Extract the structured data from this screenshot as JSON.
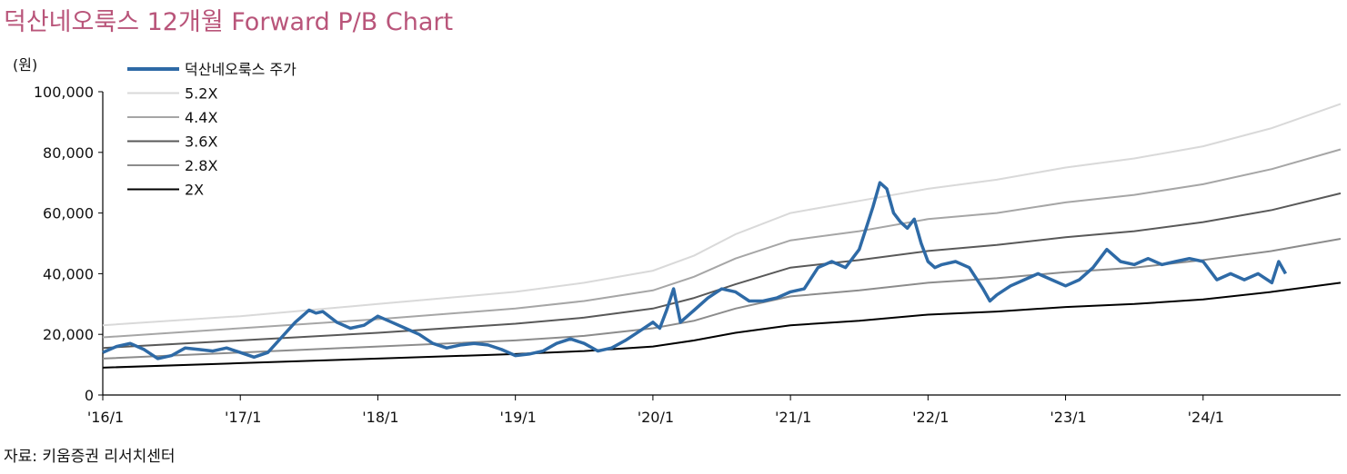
{
  "title": "덕산네오룩스  12개월  Forward P/B Chart",
  "source": "자료: 키움증권 리서치센터",
  "chart_data": {
    "type": "line",
    "title": "덕산네오룩스  12개월  Forward P/B Chart",
    "ylabel": "(원)",
    "ylim": [
      0,
      100000
    ],
    "yticks": [
      0,
      20000,
      40000,
      60000,
      80000,
      100000
    ],
    "ytick_labels": [
      "0",
      "20,000",
      "40,000",
      "60,000",
      "80,000",
      "100,000"
    ],
    "xlim": [
      2016.0,
      2025.0
    ],
    "xticks": [
      2016,
      2017,
      2018,
      2019,
      2020,
      2021,
      2022,
      2023,
      2024
    ],
    "xtick_labels": [
      "'16/1",
      "'17/1",
      "'18/1",
      "'19/1",
      "'20/1",
      "'21/1",
      "'22/1",
      "'23/1",
      "'24/1"
    ],
    "grid": false,
    "legend_position": "top-left",
    "series": [
      {
        "name": "덕산네오룩스  주가",
        "color": "#2e6aa6",
        "x": [
          2016.0,
          2016.1,
          2016.2,
          2016.3,
          2016.4,
          2016.5,
          2016.6,
          2016.7,
          2016.8,
          2016.9,
          2017.0,
          2017.1,
          2017.2,
          2017.3,
          2017.4,
          2017.45,
          2017.5,
          2017.55,
          2017.6,
          2017.7,
          2017.8,
          2017.9,
          2018.0,
          2018.1,
          2018.2,
          2018.3,
          2018.4,
          2018.5,
          2018.6,
          2018.7,
          2018.8,
          2018.9,
          2019.0,
          2019.1,
          2019.2,
          2019.3,
          2019.4,
          2019.5,
          2019.6,
          2019.7,
          2019.8,
          2019.9,
          2020.0,
          2020.05,
          2020.1,
          2020.15,
          2020.2,
          2020.3,
          2020.4,
          2020.5,
          2020.6,
          2020.7,
          2020.8,
          2020.9,
          2021.0,
          2021.1,
          2021.2,
          2021.3,
          2021.4,
          2021.45,
          2021.5,
          2021.55,
          2021.6,
          2021.65,
          2021.7,
          2021.75,
          2021.8,
          2021.85,
          2021.9,
          2021.95,
          2022.0,
          2022.05,
          2022.1,
          2022.2,
          2022.3,
          2022.4,
          2022.45,
          2022.5,
          2022.6,
          2022.7,
          2022.8,
          2022.9,
          2023.0,
          2023.1,
          2023.2,
          2023.3,
          2023.4,
          2023.5,
          2023.6,
          2023.7,
          2023.8,
          2023.9,
          2024.0,
          2024.1,
          2024.2,
          2024.3,
          2024.4,
          2024.5,
          2024.55,
          2024.6
        ],
        "values": [
          14000,
          16000,
          17000,
          15000,
          12000,
          13000,
          15500,
          15000,
          14500,
          15500,
          14000,
          12500,
          14000,
          19000,
          24000,
          26000,
          28000,
          27000,
          27500,
          24000,
          22000,
          23000,
          26000,
          24000,
          22000,
          20000,
          17000,
          15500,
          16500,
          17000,
          16500,
          15000,
          13000,
          13500,
          14500,
          17000,
          18500,
          17000,
          14500,
          15500,
          18000,
          21000,
          24000,
          22000,
          28000,
          35000,
          24000,
          28000,
          32000,
          35000,
          34000,
          31000,
          31000,
          32000,
          34000,
          35000,
          42000,
          44000,
          42000,
          45000,
          48000,
          55000,
          62000,
          70000,
          68000,
          60000,
          57000,
          55000,
          58000,
          50000,
          44000,
          42000,
          43000,
          44000,
          42000,
          35000,
          31000,
          33000,
          36000,
          38000,
          40000,
          38000,
          36000,
          38000,
          42000,
          48000,
          44000,
          43000,
          45000,
          43000,
          44000,
          45000,
          44000,
          38000,
          40000,
          38000,
          40000,
          37000,
          44000,
          40000
        ]
      },
      {
        "name": "5.2X",
        "color": "#d9d9d9",
        "x": [
          2016.0,
          2017.0,
          2018.0,
          2019.0,
          2019.5,
          2020.0,
          2020.3,
          2020.6,
          2021.0,
          2021.5,
          2022.0,
          2022.5,
          2023.0,
          2023.5,
          2024.0,
          2024.5,
          2025.0
        ],
        "values": [
          23000,
          26000,
          30000,
          34000,
          37000,
          41000,
          46000,
          53000,
          60000,
          64000,
          68000,
          71000,
          75000,
          78000,
          82000,
          88000,
          96000
        ]
      },
      {
        "name": "4.4X",
        "color": "#a6a6a6",
        "x": [
          2016.0,
          2017.0,
          2018.0,
          2019.0,
          2019.5,
          2020.0,
          2020.3,
          2020.6,
          2021.0,
          2021.5,
          2022.0,
          2022.5,
          2023.0,
          2023.5,
          2024.0,
          2024.5,
          2025.0
        ],
        "values": [
          19000,
          22000,
          25000,
          28500,
          31000,
          34500,
          39000,
          45000,
          51000,
          54000,
          58000,
          60000,
          63500,
          66000,
          69500,
          74500,
          81000
        ]
      },
      {
        "name": "3.6X",
        "color": "#595959",
        "x": [
          2016.0,
          2017.0,
          2018.0,
          2019.0,
          2019.5,
          2020.0,
          2020.3,
          2020.6,
          2021.0,
          2021.5,
          2022.0,
          2022.5,
          2023.0,
          2023.5,
          2024.0,
          2024.5,
          2025.0
        ],
        "values": [
          15500,
          18000,
          20500,
          23500,
          25500,
          28500,
          32000,
          36500,
          42000,
          44500,
          47500,
          49500,
          52000,
          54000,
          57000,
          61000,
          66500
        ]
      },
      {
        "name": "2.8X",
        "color": "#8c8c8c",
        "x": [
          2016.0,
          2017.0,
          2018.0,
          2019.0,
          2019.5,
          2020.0,
          2020.3,
          2020.6,
          2021.0,
          2021.5,
          2022.0,
          2022.5,
          2023.0,
          2023.5,
          2024.0,
          2024.5,
          2025.0
        ],
        "values": [
          12000,
          14000,
          16000,
          18000,
          19500,
          22000,
          24500,
          28500,
          32500,
          34500,
          37000,
          38500,
          40500,
          42000,
          44500,
          47500,
          51500
        ]
      },
      {
        "name": "2X",
        "color": "#000000",
        "x": [
          2016.0,
          2017.0,
          2018.0,
          2019.0,
          2019.5,
          2020.0,
          2020.3,
          2020.6,
          2021.0,
          2021.5,
          2022.0,
          2022.5,
          2023.0,
          2023.5,
          2024.0,
          2024.5,
          2025.0
        ],
        "values": [
          9000,
          10500,
          12000,
          13500,
          14500,
          16000,
          18000,
          20500,
          23000,
          24500,
          26500,
          27500,
          29000,
          30000,
          31500,
          34000,
          37000
        ]
      }
    ]
  }
}
